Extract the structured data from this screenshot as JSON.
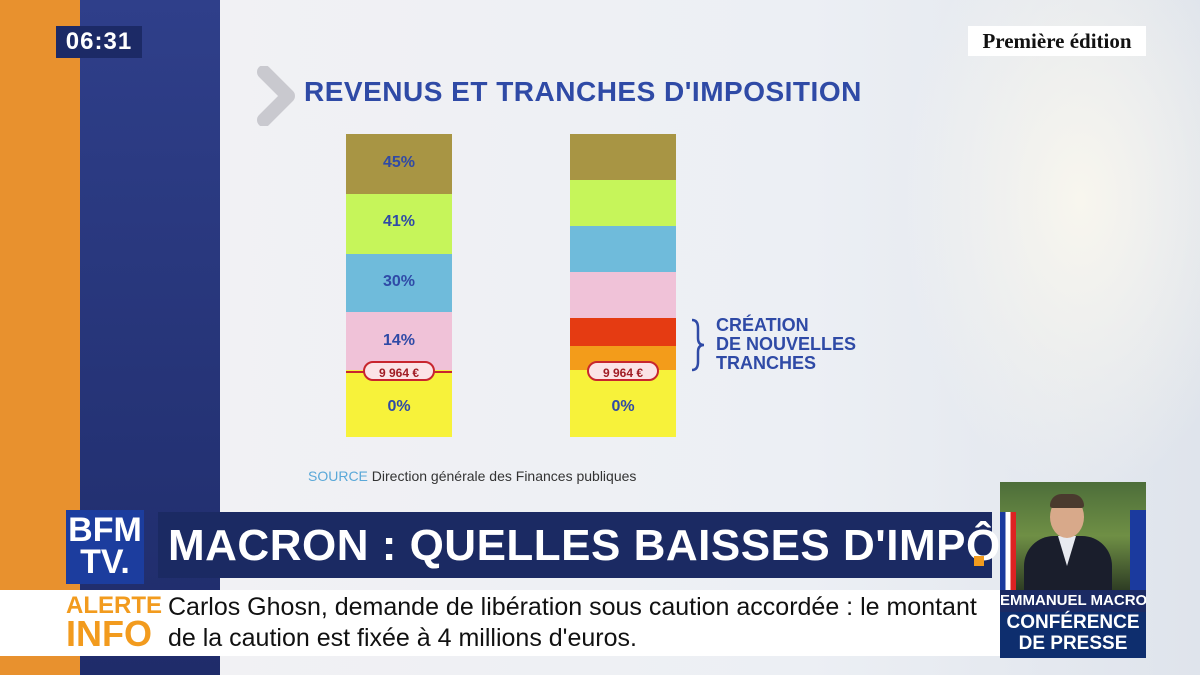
{
  "clock": "06:31",
  "edition": "Première édition",
  "infographic": {
    "title": "REVENUS ET TRANCHES D'IMPOSITION",
    "left_bar": {
      "segments": [
        {
          "label": "45%",
          "color": "#a89544"
        },
        {
          "label": "41%",
          "color": "#c6f55a"
        },
        {
          "label": "30%",
          "color": "#6fbbdb"
        },
        {
          "label": "14%",
          "color": "#f0c2d8"
        },
        {
          "label": "0%",
          "color": "#f7f23a"
        }
      ],
      "threshold": "9 964 €"
    },
    "right_bar": {
      "segments": [
        {
          "label": "",
          "color": "#a89544"
        },
        {
          "label": "",
          "color": "#c6f55a"
        },
        {
          "label": "",
          "color": "#6fbbdb"
        },
        {
          "label": "",
          "color": "#f0c2d8"
        },
        {
          "label": "",
          "color": "#e53b12"
        },
        {
          "label": "",
          "color": "#f39c1a"
        },
        {
          "label": "0%",
          "color": "#f7f23a"
        }
      ],
      "threshold": "9 964 €"
    },
    "annotation": [
      "CRÉATION",
      "DE NOUVELLES",
      "TRANCHES"
    ],
    "source_key": "SOURCE",
    "source_value": "Direction générale des Finances publiques"
  },
  "lower_third": {
    "logo_line1": "BFM",
    "logo_line2": "TV.",
    "headline": "MACRON : QUELLES BAISSES D'IMPÔTS ?",
    "alert_label1": "ALERTE",
    "alert_label2": "INFO",
    "ticker": "Carlos Ghosn, demande de libération sous caution accordée : le montant de la caution est fixée à 4 millions d'euros."
  },
  "inset": {
    "name": "EMMANUEL MACRON",
    "subtitle_line1": "CONFÉRENCE",
    "subtitle_line2": "DE PRESSE"
  }
}
